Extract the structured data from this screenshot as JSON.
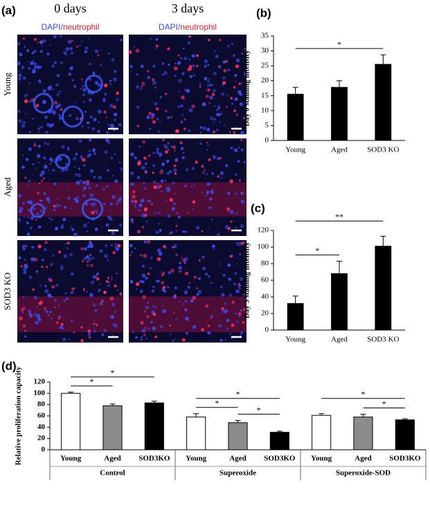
{
  "panel_a": {
    "label": "(a)",
    "columns": [
      "0 days",
      "3 days"
    ],
    "stain": [
      "DAPI/",
      "neutrophil"
    ],
    "rows": [
      "Young",
      "Aged",
      "SOD3 KO"
    ]
  },
  "chart_data": [
    {
      "type": "bar",
      "panel": "(b)",
      "ylabel": "Day 0 staining intensity",
      "categories": [
        "Young",
        "Aged",
        "SOD3 KO"
      ],
      "values": [
        15.5,
        17.8,
        25.5
      ],
      "errors": [
        2.3,
        2.2,
        3.2
      ],
      "color": "#000000",
      "ylim": [
        0,
        35
      ],
      "yticks": [
        0,
        5,
        10,
        15,
        20,
        25,
        30,
        35
      ],
      "significance": [
        {
          "from": 0,
          "to": 2,
          "label": "*"
        }
      ]
    },
    {
      "type": "bar",
      "panel": "(c)",
      "ylabel": "Day 3 staining intensity",
      "categories": [
        "Young",
        "Aged",
        "SOD3 KO"
      ],
      "values": [
        32,
        68,
        101
      ],
      "errors": [
        9,
        15,
        12
      ],
      "color": "#000000",
      "ylim": [
        0,
        120
      ],
      "yticks": [
        0,
        20,
        40,
        60,
        80,
        100,
        120
      ],
      "significance": [
        {
          "from": 0,
          "to": 1,
          "label": "*"
        },
        {
          "from": 0,
          "to": 2,
          "label": "**"
        }
      ]
    },
    {
      "type": "grouped_bar",
      "panel": "(d)",
      "ylabel": "Relative proliferation capacity",
      "categories": [
        "Young",
        "Aged",
        "SOD3KO"
      ],
      "colors": [
        "#ffffff",
        "#8c8c8c",
        "#000000"
      ],
      "ylim": [
        0,
        120
      ],
      "yticks": [
        0,
        20,
        40,
        60,
        80,
        100,
        120
      ],
      "groups": [
        {
          "name": "Control",
          "values": [
            100,
            78,
            83
          ],
          "errors": [
            2,
            3,
            3
          ],
          "significance": [
            {
              "from": 0,
              "to": 1,
              "label": "*"
            },
            {
              "from": 0,
              "to": 2,
              "label": "*"
            }
          ]
        },
        {
          "name": "Superoxide",
          "values": [
            58,
            48,
            31
          ],
          "errors": [
            6,
            4,
            2
          ],
          "significance": [
            {
              "from": 0,
              "to": 1,
              "label": "*"
            },
            {
              "from": 1,
              "to": 2,
              "label": "*"
            },
            {
              "from": 0,
              "to": 2,
              "label": "*"
            }
          ]
        },
        {
          "name": "Superoxide-SOD",
          "values": [
            61,
            58,
            53
          ],
          "errors": [
            3,
            5,
            2
          ],
          "significance": [
            {
              "from": 1,
              "to": 2,
              "label": "*"
            },
            {
              "from": 0,
              "to": 2,
              "label": "*"
            }
          ]
        }
      ]
    }
  ]
}
